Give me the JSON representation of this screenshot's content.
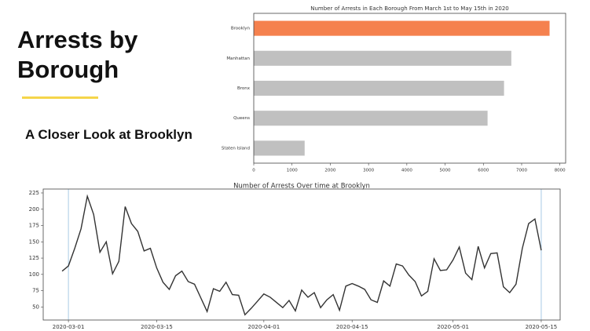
{
  "header": {
    "title": "Arrests by Borough",
    "subtitle": "A Closer Look at Brooklyn"
  },
  "chart_data": [
    {
      "type": "barh",
      "title": "Number of Arrests in Each Borough From March 1st to May 15th in 2020",
      "categories": [
        "Brooklyn",
        "Manhattan",
        "Bronx",
        "Queens",
        "Staten Island"
      ],
      "values": [
        7730,
        6730,
        6540,
        6110,
        1330
      ],
      "colors": [
        "#f5814e",
        "#c0c0c0",
        "#c0c0c0",
        "#c0c0c0",
        "#c0c0c0"
      ],
      "xlim": [
        0,
        8150
      ],
      "xticks": [
        0,
        1000,
        2000,
        3000,
        4000,
        5000,
        6000,
        7000,
        8000
      ]
    },
    {
      "type": "line",
      "title": "Number of Arrests Over time at Brooklyn",
      "x": [
        "2020-02-29",
        "2020-03-01",
        "2020-03-02",
        "2020-03-03",
        "2020-03-04",
        "2020-03-05",
        "2020-03-06",
        "2020-03-07",
        "2020-03-08",
        "2020-03-09",
        "2020-03-10",
        "2020-03-11",
        "2020-03-12",
        "2020-03-13",
        "2020-03-14",
        "2020-03-15",
        "2020-03-16",
        "2020-03-17",
        "2020-03-18",
        "2020-03-19",
        "2020-03-20",
        "2020-03-21",
        "2020-03-22",
        "2020-03-23",
        "2020-03-24",
        "2020-03-25",
        "2020-03-26",
        "2020-03-27",
        "2020-03-28",
        "2020-03-29",
        "2020-03-30",
        "2020-03-31",
        "2020-04-01",
        "2020-04-02",
        "2020-04-03",
        "2020-04-04",
        "2020-04-05",
        "2020-04-06",
        "2020-04-07",
        "2020-04-08",
        "2020-04-09",
        "2020-04-10",
        "2020-04-11",
        "2020-04-12",
        "2020-04-13",
        "2020-04-14",
        "2020-04-15",
        "2020-04-16",
        "2020-04-17",
        "2020-04-18",
        "2020-04-19",
        "2020-04-20",
        "2020-04-21",
        "2020-04-22",
        "2020-04-23",
        "2020-04-24",
        "2020-04-25",
        "2020-04-26",
        "2020-04-27",
        "2020-04-28",
        "2020-04-29",
        "2020-04-30",
        "2020-05-01",
        "2020-05-02",
        "2020-05-03",
        "2020-05-04",
        "2020-05-05",
        "2020-05-06",
        "2020-05-07",
        "2020-05-08",
        "2020-05-09",
        "2020-05-10",
        "2020-05-11",
        "2020-05-12",
        "2020-05-13",
        "2020-05-14",
        "2020-05-15"
      ],
      "values": [
        105,
        113,
        140,
        170,
        220,
        192,
        134,
        150,
        101,
        120,
        204,
        178,
        166,
        136,
        140,
        110,
        88,
        77,
        98,
        105,
        89,
        85,
        64,
        43,
        78,
        74,
        88,
        69,
        68,
        38,
        48,
        59,
        70,
        65,
        57,
        49,
        60,
        44,
        76,
        65,
        72,
        49,
        61,
        69,
        45,
        82,
        86,
        82,
        77,
        61,
        57,
        90,
        82,
        116,
        113,
        99,
        89,
        67,
        74,
        124,
        106,
        107,
        122,
        142,
        102,
        92,
        143,
        110,
        132,
        133,
        81,
        72,
        85,
        140,
        178,
        185,
        137
      ],
      "color": "#333333",
      "vlines": [
        "2020-03-01",
        "2020-05-15"
      ],
      "vline_color": "#a8cbe6",
      "xlim": [
        "2020-02-26",
        "2020-05-18"
      ],
      "ylim": [
        30,
        231
      ],
      "xticks": [
        "2020-03-01",
        "2020-03-15",
        "2020-04-01",
        "2020-04-15",
        "2020-05-01",
        "2020-05-15"
      ],
      "yticks": [
        50,
        75,
        100,
        125,
        150,
        175,
        200,
        225
      ]
    }
  ]
}
